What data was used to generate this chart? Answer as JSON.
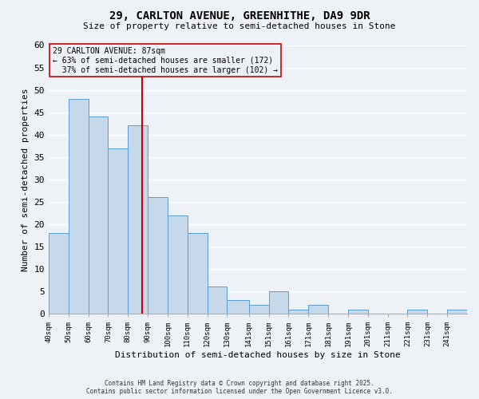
{
  "title": "29, CARLTON AVENUE, GREENHITHE, DA9 9DR",
  "subtitle": "Size of property relative to semi-detached houses in Stone",
  "xlabel": "Distribution of semi-detached houses by size in Stone",
  "ylabel": "Number of semi-detached properties",
  "bin_labels": [
    "40sqm",
    "50sqm",
    "60sqm",
    "70sqm",
    "80sqm",
    "90sqm",
    "100sqm",
    "110sqm",
    "120sqm",
    "130sqm",
    "141sqm",
    "151sqm",
    "161sqm",
    "171sqm",
    "181sqm",
    "191sqm",
    "201sqm",
    "211sqm",
    "221sqm",
    "231sqm",
    "241sqm"
  ],
  "bin_edges": [
    40,
    50,
    60,
    70,
    80,
    90,
    100,
    110,
    120,
    130,
    141,
    151,
    161,
    171,
    181,
    191,
    201,
    211,
    221,
    231,
    241,
    251
  ],
  "values": [
    18,
    48,
    44,
    37,
    42,
    26,
    22,
    18,
    6,
    3,
    2,
    5,
    1,
    2,
    0,
    1,
    0,
    0,
    1,
    0,
    1
  ],
  "bar_color": "#c6d9ea",
  "bar_edge_color": "#5b9bd5",
  "property_size": 87,
  "property_label": "29 CARLTON AVENUE: 87sqm",
  "pct_smaller": 63,
  "pct_smaller_count": 172,
  "pct_larger": 37,
  "pct_larger_count": 102,
  "vline_color": "#cc0000",
  "annotation_box_edge": "#cc0000",
  "ylim": [
    0,
    60
  ],
  "yticks": [
    0,
    5,
    10,
    15,
    20,
    25,
    30,
    35,
    40,
    45,
    50,
    55,
    60
  ],
  "background_color": "#eef2f7",
  "grid_color": "#ffffff",
  "footer_line1": "Contains HM Land Registry data © Crown copyright and database right 2025.",
  "footer_line2": "Contains public sector information licensed under the Open Government Licence v3.0."
}
